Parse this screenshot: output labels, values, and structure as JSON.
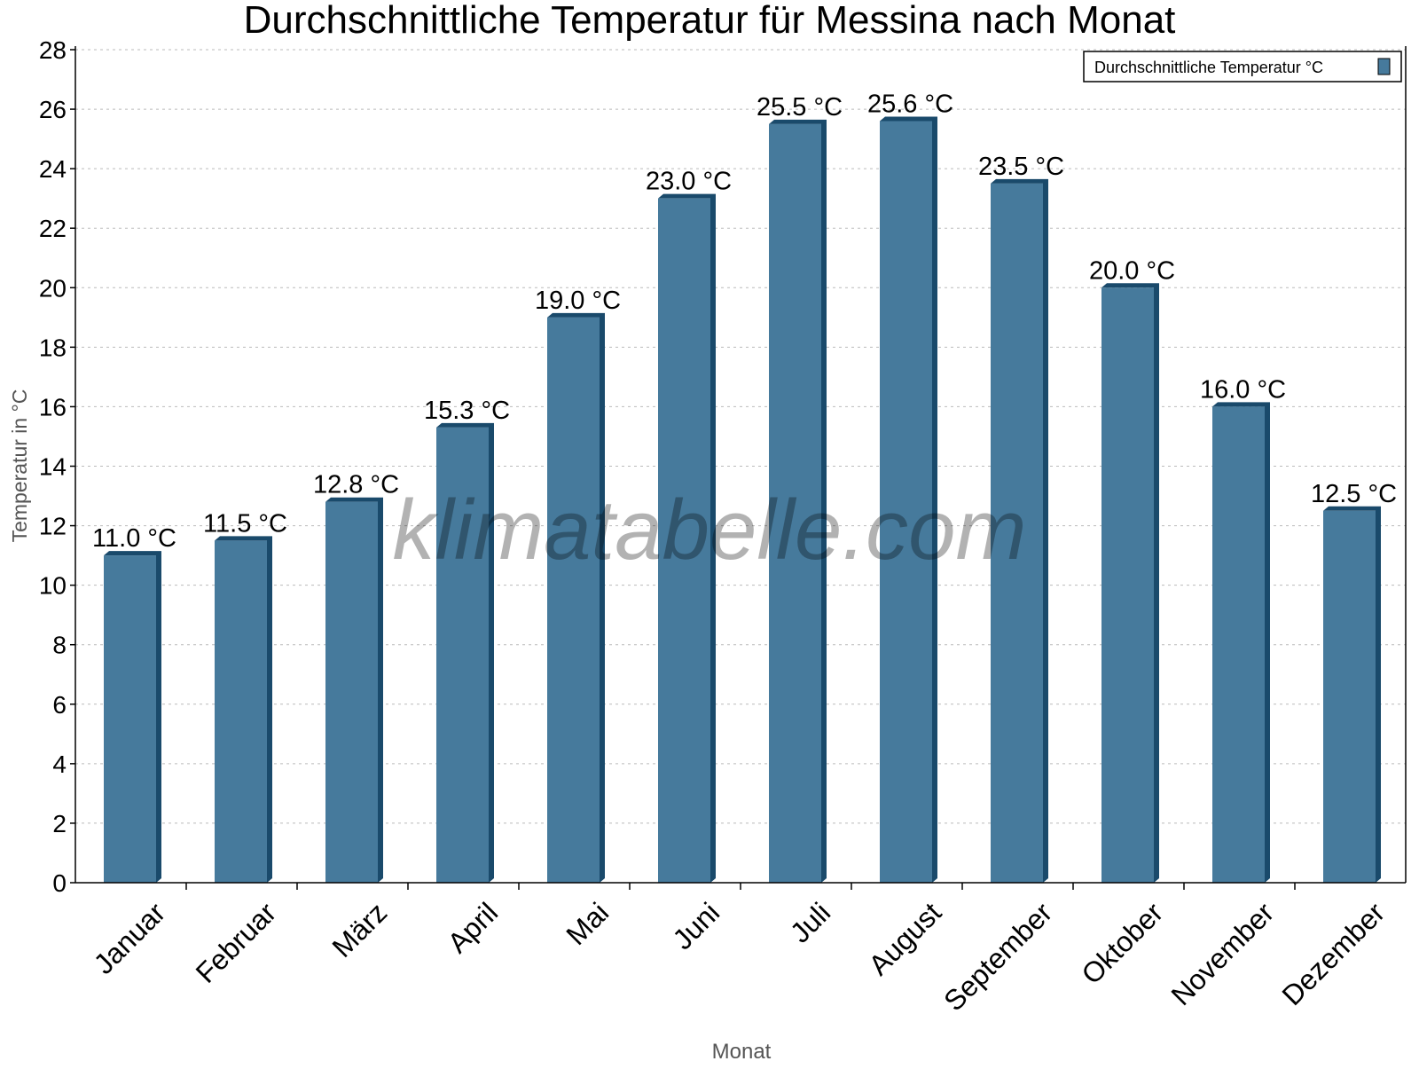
{
  "chart_data": {
    "type": "bar",
    "title": "Durchschnittliche Temperatur für Messina nach Monat",
    "xlabel": "Monat",
    "ylabel": "Temperatur in °C",
    "ylim": [
      0,
      28
    ],
    "yticks": [
      0,
      2,
      4,
      6,
      8,
      10,
      12,
      14,
      16,
      18,
      20,
      22,
      24,
      26,
      28
    ],
    "grid": true,
    "legend_position": "top-right",
    "categories": [
      "Januar",
      "Februar",
      "März",
      "April",
      "Mai",
      "Juni",
      "Juli",
      "August",
      "September",
      "Oktober",
      "November",
      "Dezember"
    ],
    "series": [
      {
        "name": "Durchschnittliche Temperatur °C",
        "values": [
          11.0,
          11.5,
          12.8,
          15.3,
          19.0,
          23.0,
          25.5,
          25.6,
          23.5,
          20.0,
          16.0,
          12.5
        ],
        "data_labels": [
          "11.0 °C",
          "11.5 °C",
          "12.8 °C",
          "15.3 °C",
          "19.0 °C",
          "23.0 °C",
          "25.5 °C",
          "25.6 °C",
          "23.5 °C",
          "20.0 °C",
          "16.0 °C",
          "12.5 °C"
        ],
        "color": "#467a9c",
        "side_color": "#1a4a6b"
      }
    ],
    "watermark": "klimatabelle.com"
  }
}
